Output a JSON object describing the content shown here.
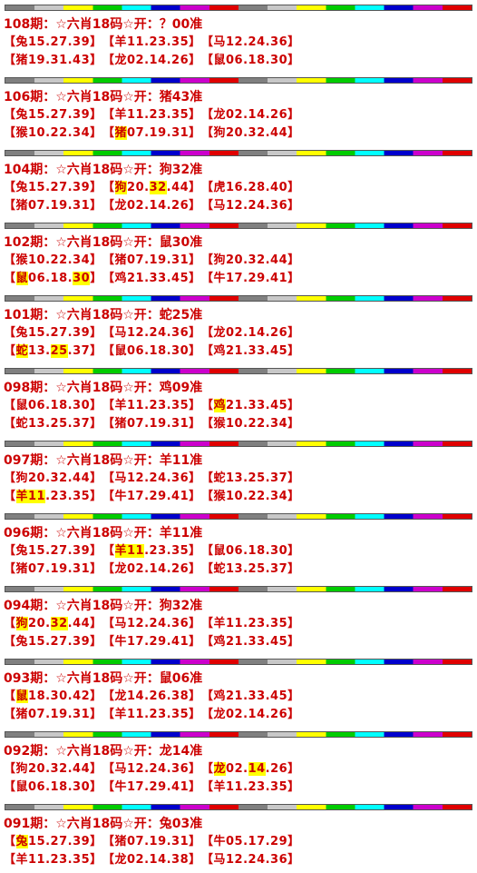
{
  "blocks": [
    {
      "title": "108期：☆六肖18码☆开：？00准",
      "rows": [
        [
          [
            {
              "text": "【兔15.27.39】"
            }
          ],
          [
            {
              "text": "【羊11.23.35】"
            }
          ],
          [
            {
              "text": "【马12.24.36】"
            }
          ]
        ],
        [
          [
            {
              "text": "【猪19.31.43】"
            }
          ],
          [
            {
              "text": "【龙02.14.26】"
            }
          ],
          [
            {
              "text": "【鼠06.18.30】"
            }
          ]
        ]
      ]
    },
    {
      "title": "106期：☆六肖18码☆开：猪43准",
      "rows": [
        [
          [
            {
              "text": "【兔15.27.39】"
            }
          ],
          [
            {
              "text": "【羊11.23.35】"
            }
          ],
          [
            {
              "text": "【龙02.14.26】"
            }
          ]
        ],
        [
          [
            {
              "text": "【猴10.22.34】"
            }
          ],
          [
            {
              "text": "【"
            },
            {
              "text": "猪",
              "highlight": true
            },
            {
              "text": "07.19.31】"
            }
          ],
          [
            {
              "text": "【狗20.32.44】"
            }
          ]
        ]
      ]
    },
    {
      "title": "104期：☆六肖18码☆开：狗32准",
      "rows": [
        [
          [
            {
              "text": "【兔15.27.39】"
            }
          ],
          [
            {
              "text": "【"
            },
            {
              "text": "狗",
              "highlight": true
            },
            {
              "text": "20."
            },
            {
              "text": "32",
              "highlight": true
            },
            {
              "text": ".44】"
            }
          ],
          [
            {
              "text": "【虎16.28.40】"
            }
          ]
        ],
        [
          [
            {
              "text": "【猪07.19.31】"
            }
          ],
          [
            {
              "text": "【龙02.14.26】"
            }
          ],
          [
            {
              "text": "【马12.24.36】"
            }
          ]
        ]
      ]
    },
    {
      "title": "102期：☆六肖18码☆开：鼠30准",
      "rows": [
        [
          [
            {
              "text": "【猴10.22.34】"
            }
          ],
          [
            {
              "text": "【猪07.19.31】"
            }
          ],
          [
            {
              "text": "【狗20.32.44】"
            }
          ]
        ],
        [
          [
            {
              "text": "【"
            },
            {
              "text": "鼠",
              "highlight": true
            },
            {
              "text": "06.18."
            },
            {
              "text": "30",
              "highlight": true
            },
            {
              "text": "】"
            }
          ],
          [
            {
              "text": "【鸡21.33.45】"
            }
          ],
          [
            {
              "text": "【牛17.29.41】"
            }
          ]
        ]
      ]
    },
    {
      "title": "101期：☆六肖18码☆开：蛇25准",
      "rows": [
        [
          [
            {
              "text": "【兔15.27.39】"
            }
          ],
          [
            {
              "text": "【马12.24.36】"
            }
          ],
          [
            {
              "text": "【龙02.14.26】"
            }
          ]
        ],
        [
          [
            {
              "text": "【"
            },
            {
              "text": "蛇",
              "highlight": true
            },
            {
              "text": "13."
            },
            {
              "text": "25",
              "highlight": true
            },
            {
              "text": ".37】"
            }
          ],
          [
            {
              "text": "【鼠06.18.30】"
            }
          ],
          [
            {
              "text": "【鸡21.33.45】"
            }
          ]
        ]
      ]
    },
    {
      "title": "098期：☆六肖18码☆开：鸡09准",
      "rows": [
        [
          [
            {
              "text": "【鼠06.18.30】"
            }
          ],
          [
            {
              "text": "【羊11.23.35】"
            }
          ],
          [
            {
              "text": "【"
            },
            {
              "text": "鸡",
              "highlight": true
            },
            {
              "text": "21.33.45】"
            }
          ]
        ],
        [
          [
            {
              "text": "【蛇13.25.37】"
            }
          ],
          [
            {
              "text": "【猪07.19.31】"
            }
          ],
          [
            {
              "text": "【猴10.22.34】"
            }
          ]
        ]
      ]
    },
    {
      "title": "097期：☆六肖18码☆开：羊11准",
      "rows": [
        [
          [
            {
              "text": "【狗20.32.44】"
            }
          ],
          [
            {
              "text": "【马12.24.36】"
            }
          ],
          [
            {
              "text": "【蛇13.25.37】"
            }
          ]
        ],
        [
          [
            {
              "text": "【"
            },
            {
              "text": "羊11",
              "highlight": true
            },
            {
              "text": ".23.35】"
            }
          ],
          [
            {
              "text": "【牛17.29.41】"
            }
          ],
          [
            {
              "text": "【猴10.22.34】"
            }
          ]
        ]
      ]
    },
    {
      "title": "096期：☆六肖18码☆开：羊11准",
      "rows": [
        [
          [
            {
              "text": "【兔15.27.39】"
            }
          ],
          [
            {
              "text": "【"
            },
            {
              "text": "羊11",
              "highlight": true
            },
            {
              "text": ".23.35】"
            }
          ],
          [
            {
              "text": "【鼠06.18.30】"
            }
          ]
        ],
        [
          [
            {
              "text": "【猪07.19.31】"
            }
          ],
          [
            {
              "text": "【龙02.14.26】"
            }
          ],
          [
            {
              "text": "【蛇13.25.37】"
            }
          ]
        ]
      ]
    },
    {
      "title": "094期：☆六肖18码☆开：狗32准",
      "rows": [
        [
          [
            {
              "text": "【"
            },
            {
              "text": "狗",
              "highlight": true
            },
            {
              "text": "20."
            },
            {
              "text": "32",
              "highlight": true
            },
            {
              "text": ".44】"
            }
          ],
          [
            {
              "text": "【马12.24.36】"
            }
          ],
          [
            {
              "text": "【羊11.23.35】"
            }
          ]
        ],
        [
          [
            {
              "text": "【兔15.27.39】"
            }
          ],
          [
            {
              "text": "【牛17.29.41】"
            }
          ],
          [
            {
              "text": "【鸡21.33.45】"
            }
          ]
        ]
      ]
    },
    {
      "title": "093期：☆六肖18码☆开：鼠06准",
      "rows": [
        [
          [
            {
              "text": "【"
            },
            {
              "text": "鼠",
              "highlight": true
            },
            {
              "text": "18.30.42】"
            }
          ],
          [
            {
              "text": "【龙14.26.38】"
            }
          ],
          [
            {
              "text": "【鸡21.33.45】"
            }
          ]
        ],
        [
          [
            {
              "text": "【猪07.19.31】"
            }
          ],
          [
            {
              "text": "【羊11.23.35】"
            }
          ],
          [
            {
              "text": "【龙02.14.26】"
            }
          ]
        ]
      ]
    },
    {
      "title": "092期：☆六肖18码☆开：龙14准",
      "rows": [
        [
          [
            {
              "text": "【狗20.32.44】"
            }
          ],
          [
            {
              "text": "【马12.24.36】"
            }
          ],
          [
            {
              "text": "【"
            },
            {
              "text": "龙",
              "highlight": true
            },
            {
              "text": "02."
            },
            {
              "text": "14",
              "highlight": true
            },
            {
              "text": ".26】"
            }
          ]
        ],
        [
          [
            {
              "text": "【鼠06.18.30】"
            }
          ],
          [
            {
              "text": "【牛17.29.41】"
            }
          ],
          [
            {
              "text": "【羊11.23.35】"
            }
          ]
        ]
      ]
    },
    {
      "title": "091期：☆六肖18码☆开：兔03准",
      "rows": [
        [
          [
            {
              "text": "【"
            },
            {
              "text": "兔",
              "highlight": true
            },
            {
              "text": "15.27.39】"
            }
          ],
          [
            {
              "text": "【猪07.19.31】"
            }
          ],
          [
            {
              "text": "【牛05.17.29】"
            }
          ]
        ],
        [
          [
            {
              "text": "【羊11.23.35】"
            }
          ],
          [
            {
              "text": "【龙02.14.38】"
            }
          ],
          [
            {
              "text": "【马12.24.36】"
            }
          ]
        ]
      ]
    }
  ]
}
